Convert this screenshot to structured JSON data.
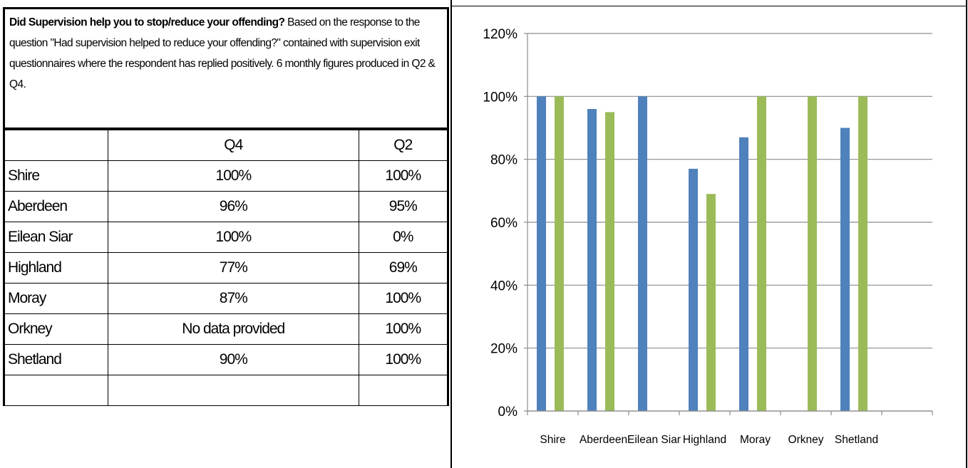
{
  "description": {
    "bold": "Did Supervision help you to stop/reduce your offending?",
    "rest": " Based on the response to the question \"Had supervision helped to reduce your offending?\" contained with supervision exit questionnaires where the respondent has replied positively. 6 monthly figures produced in Q2 & Q4."
  },
  "table": {
    "headers": [
      "",
      "Q4",
      "Q2"
    ],
    "rows": [
      [
        "Shire",
        "100%",
        "100%"
      ],
      [
        "Aberdeen",
        "96%",
        "95%"
      ],
      [
        "Eilean Siar",
        "100%",
        "0%"
      ],
      [
        "Highland",
        "77%",
        "69%"
      ],
      [
        "Moray",
        "87%",
        "100%"
      ],
      [
        "Orkney",
        "No data provided",
        "100%"
      ],
      [
        "Shetland",
        "90%",
        "100%"
      ],
      [
        "",
        "",
        ""
      ]
    ]
  },
  "chart_data": {
    "type": "bar",
    "categories": [
      "Shire",
      "Aberdeen",
      "Eilean Siar",
      "Highland",
      "Moray",
      "Orkney",
      "Shetland",
      ""
    ],
    "series": [
      {
        "values": [
          100,
          96,
          100,
          77,
          87,
          null,
          90,
          null
        ],
        "color": "#4f81bd"
      },
      {
        "values": [
          100,
          95,
          0,
          69,
          100,
          100,
          100,
          null
        ],
        "color": "#9bbb59"
      }
    ],
    "ylim": [
      0,
      120
    ],
    "yticks": [
      "0%",
      "20%",
      "40%",
      "60%",
      "80%",
      "100%",
      "120%"
    ],
    "grid": true,
    "legend": "none"
  }
}
